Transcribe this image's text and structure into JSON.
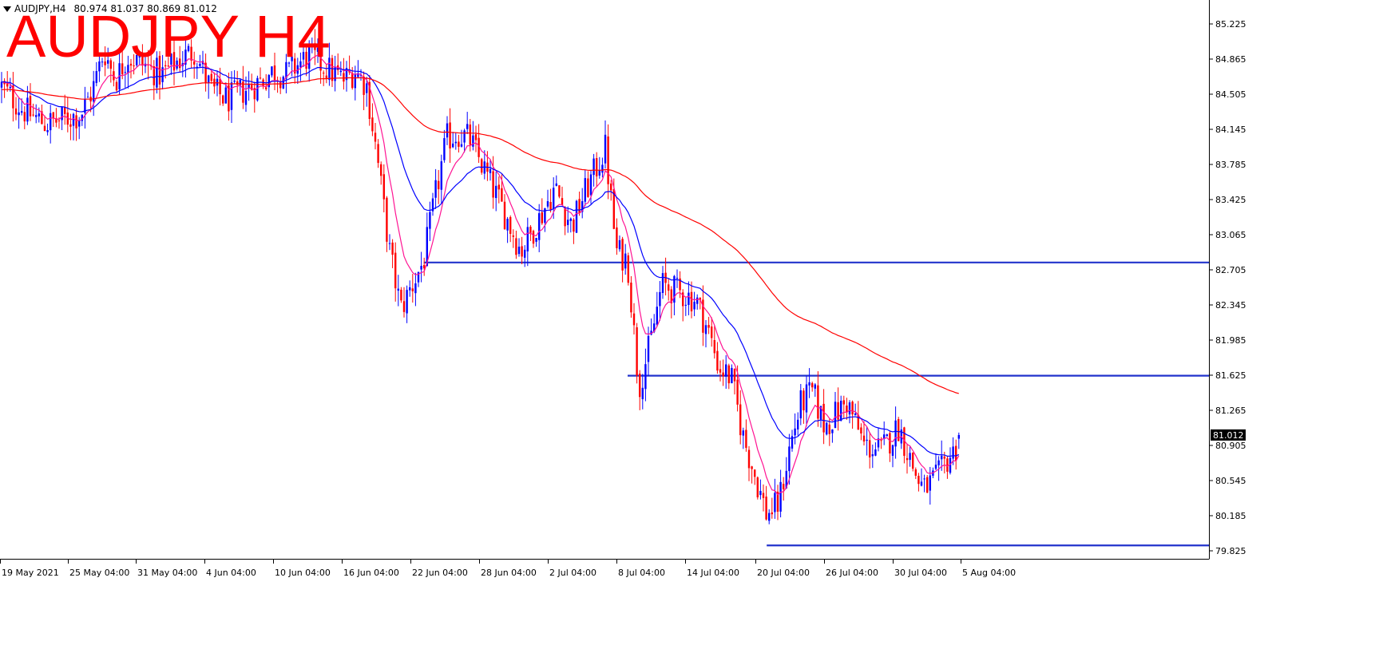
{
  "header": {
    "symbol": "AUDJPY,H4",
    "ohlc": "80.974 81.037 80.869 81.012",
    "big_title": "AUDJPY H4"
  },
  "colors": {
    "bull": "#0000ff",
    "bear": "#ff0000",
    "ma_short": "#ff1493",
    "ma_mid": "#0000ff",
    "ma_long": "#ff0000",
    "level_line": "#2233cc",
    "price_tag_bg": "#000000",
    "price_tag_text": "#ffffff"
  },
  "chart_data": {
    "type": "candlestick",
    "title": "AUDJPY H4",
    "x_axis_labels": [
      "19 May 2021",
      "25 May 04:00",
      "31 May 04:00",
      "4 Jun 04:00",
      "10 Jun 04:00",
      "16 Jun 04:00",
      "22 Jun 04:00",
      "28 Jun 04:00",
      "2 Jul 04:00",
      "8 Jul 04:00",
      "14 Jul 04:00",
      "20 Jul 04:00",
      "26 Jul 04:00",
      "30 Jul 04:00",
      "5 Aug 04:00"
    ],
    "y_axis_labels": [
      "85.225",
      "84.865",
      "84.505",
      "84.145",
      "83.785",
      "83.425",
      "83.065",
      "82.705",
      "82.345",
      "81.985",
      "81.625",
      "81.265",
      "80.905",
      "80.545",
      "80.185",
      "79.825"
    ],
    "ylim": [
      79.72,
      85.35
    ],
    "current_price": "81.012",
    "horizontal_levels": [
      {
        "price": 82.78,
        "from": "21 Jun 2021"
      },
      {
        "price": 81.62,
        "from": "7 Jul 2021"
      },
      {
        "price": 79.88,
        "from": "19 Jul 2021"
      }
    ],
    "close_path": [
      [
        "18 May 2021",
        84.6
      ],
      [
        "19 May 2021",
        84.35
      ],
      [
        "21 May 2021",
        84.2
      ],
      [
        "24 May 2021",
        84.3
      ],
      [
        "25 May 2021",
        84.55
      ],
      [
        "26 May 2021",
        84.95
      ],
      [
        "27 May 2021",
        84.65
      ],
      [
        "28 May 2021",
        84.9
      ],
      [
        "31 May 2021",
        84.7
      ],
      [
        "1 Jun 2021",
        84.85
      ],
      [
        "2 Jun 2021",
        84.95
      ],
      [
        "3 Jun 2021",
        84.55
      ],
      [
        "4 Jun 2021",
        84.45
      ],
      [
        "7 Jun 2021",
        84.65
      ],
      [
        "8 Jun 2021",
        84.75
      ],
      [
        "9 Jun 2021",
        84.7
      ],
      [
        "10 Jun 2021",
        84.8
      ],
      [
        "11 Jun 2021",
        84.9
      ],
      [
        "14 Jun 2021",
        84.65
      ],
      [
        "15 Jun 2021",
        84.75
      ],
      [
        "16 Jun 2021",
        84.6
      ],
      [
        "17 Jun 2021",
        83.8
      ],
      [
        "18 Jun 2021",
        82.9
      ],
      [
        "19 Jun 2021",
        82.3
      ],
      [
        "21 Jun 2021",
        82.8
      ],
      [
        "22 Jun 2021",
        83.45
      ],
      [
        "23 Jun 2021",
        84.05
      ],
      [
        "24 Jun 2021",
        84.1
      ],
      [
        "25 Jun 2021",
        84.05
      ],
      [
        "26 Jun 2021",
        83.8
      ],
      [
        "28 Jun 2021",
        83.3
      ],
      [
        "29 Jun 2021",
        82.9
      ],
      [
        "30 Jun 2021",
        83.2
      ],
      [
        "1 Jul 2021",
        83.55
      ],
      [
        "2 Jul 2021",
        83.15
      ],
      [
        "3 Jul 2021",
        83.45
      ],
      [
        "5 Jul 2021",
        83.95
      ],
      [
        "6 Jul 2021",
        82.9
      ],
      [
        "7 Jul 2021",
        82.8
      ],
      [
        "8 Jul 2021",
        81.5
      ],
      [
        "9 Jul 2021",
        81.95
      ],
      [
        "10 Jul 2021",
        82.55
      ],
      [
        "12 Jul 2021",
        82.45
      ],
      [
        "13 Jul 2021",
        82.4
      ],
      [
        "14 Jul 2021",
        82.1
      ],
      [
        "15 Jul 2021",
        81.7
      ],
      [
        "16 Jul 2021",
        81.6
      ],
      [
        "17 Jul 2021",
        81.0
      ],
      [
        "19 Jul 2021",
        80.2
      ],
      [
        "20 Jul 2021",
        80.3
      ],
      [
        "21 Jul 2021",
        80.9
      ],
      [
        "22 Jul 2021",
        81.35
      ],
      [
        "23 Jul 2021",
        81.45
      ],
      [
        "24 Jul 2021",
        81.1
      ],
      [
        "26 Jul 2021",
        81.35
      ],
      [
        "27 Jul 2021",
        80.9
      ],
      [
        "28 Jul 2021",
        80.85
      ],
      [
        "29 Jul 2021",
        81.1
      ],
      [
        "30 Jul 2021",
        80.6
      ],
      [
        "31 Jul 2021",
        80.45
      ],
      [
        "2 Aug 2021",
        80.6
      ],
      [
        "3 Aug 2021",
        80.75
      ],
      [
        "4 Aug 2021",
        80.85
      ],
      [
        "5 Aug 2021",
        81.01
      ]
    ]
  }
}
